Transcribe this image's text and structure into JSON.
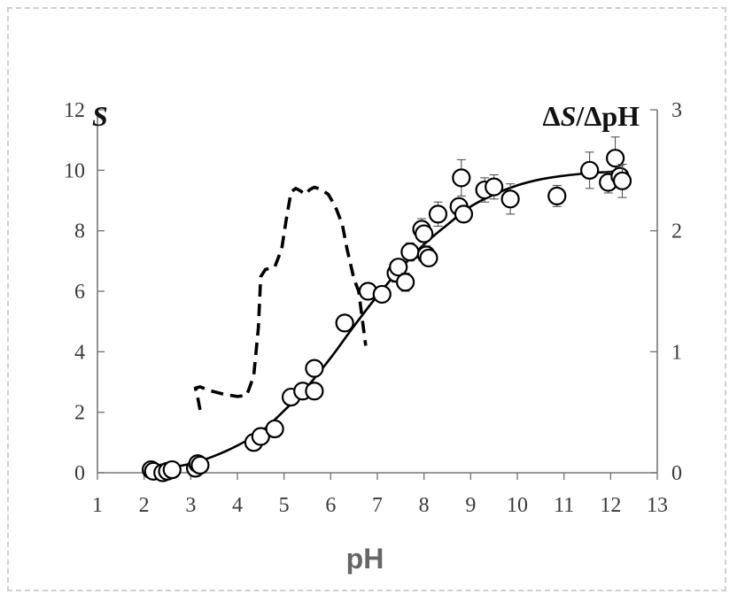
{
  "chart_data": {
    "type": "scatter",
    "xlabel": "pH",
    "ylabel_left": "S",
    "ylabel_right_parts": [
      "Δ",
      "S",
      "/ΔpH"
    ],
    "xlim": [
      1,
      13
    ],
    "ylim_left": [
      0,
      12
    ],
    "ylim_right": [
      0,
      3
    ],
    "x_ticks": [
      "1",
      "2",
      "3",
      "4",
      "5",
      "6",
      "7",
      "8",
      "9",
      "10",
      "11",
      "12",
      "13"
    ],
    "y_left_ticks": [
      "0",
      "2",
      "4",
      "6",
      "8",
      "10",
      "12"
    ],
    "y_right_ticks": [
      "0",
      "1",
      "2",
      "3"
    ],
    "grid": false,
    "series": [
      {
        "type": "scatter",
        "axis": "left",
        "marker": "open-circle",
        "points": [
          {
            "x": 2.15,
            "y": 0.1,
            "err": 0
          },
          {
            "x": 2.2,
            "y": 0.05,
            "err": 0
          },
          {
            "x": 2.4,
            "y": 0.0,
            "err": 0
          },
          {
            "x": 2.5,
            "y": 0.05,
            "err": 0
          },
          {
            "x": 2.6,
            "y": 0.1,
            "err": 0
          },
          {
            "x": 3.1,
            "y": 0.15,
            "err": 0
          },
          {
            "x": 3.15,
            "y": 0.3,
            "err": 0
          },
          {
            "x": 3.2,
            "y": 0.25,
            "err": 0
          },
          {
            "x": 4.35,
            "y": 1.0,
            "err": 0
          },
          {
            "x": 4.5,
            "y": 1.2,
            "err": 0
          },
          {
            "x": 4.8,
            "y": 1.45,
            "err": 0.1
          },
          {
            "x": 5.15,
            "y": 2.5,
            "err": 0.1
          },
          {
            "x": 5.4,
            "y": 2.7,
            "err": 0.1
          },
          {
            "x": 5.65,
            "y": 2.7,
            "err": 0
          },
          {
            "x": 5.65,
            "y": 3.45,
            "err": 0.15
          },
          {
            "x": 6.3,
            "y": 4.95,
            "err": 0.15
          },
          {
            "x": 6.8,
            "y": 6.0,
            "err": 0.2
          },
          {
            "x": 7.1,
            "y": 5.9,
            "err": 0
          },
          {
            "x": 7.4,
            "y": 6.6,
            "err": 0.3
          },
          {
            "x": 7.45,
            "y": 6.8,
            "err": 0
          },
          {
            "x": 7.6,
            "y": 6.3,
            "err": 0.3
          },
          {
            "x": 7.7,
            "y": 7.3,
            "err": 0.3
          },
          {
            "x": 7.95,
            "y": 8.05,
            "err": 0.35
          },
          {
            "x": 8.0,
            "y": 7.9,
            "err": 0
          },
          {
            "x": 8.05,
            "y": 7.2,
            "err": 0.3
          },
          {
            "x": 8.1,
            "y": 7.1,
            "err": 0
          },
          {
            "x": 8.3,
            "y": 8.55,
            "err": 0.4
          },
          {
            "x": 8.75,
            "y": 8.8,
            "err": 0
          },
          {
            "x": 8.8,
            "y": 9.75,
            "err": 0.6
          },
          {
            "x": 8.85,
            "y": 8.55,
            "err": 0
          },
          {
            "x": 9.3,
            "y": 9.35,
            "err": 0.4
          },
          {
            "x": 9.5,
            "y": 9.45,
            "err": 0.4
          },
          {
            "x": 9.85,
            "y": 9.05,
            "err": 0.5
          },
          {
            "x": 10.85,
            "y": 9.15,
            "err": 0.35
          },
          {
            "x": 11.55,
            "y": 10.0,
            "err": 0.6
          },
          {
            "x": 11.95,
            "y": 9.6,
            "err": 0.35
          },
          {
            "x": 12.1,
            "y": 10.4,
            "err": 0.7
          },
          {
            "x": 12.2,
            "y": 9.8,
            "err": 0.35
          },
          {
            "x": 12.25,
            "y": 9.65,
            "err": 0.55
          }
        ]
      },
      {
        "type": "line",
        "axis": "left",
        "style": "solid",
        "x": [
          2.0,
          2.5,
          3.0,
          3.5,
          4.0,
          4.5,
          5.0,
          5.5,
          6.0,
          6.5,
          7.0,
          7.5,
          8.0,
          8.5,
          9.0,
          9.5,
          10.0,
          10.5,
          11.0,
          11.5,
          12.0,
          12.3
        ],
        "y": [
          0.08,
          0.16,
          0.3,
          0.55,
          0.9,
          1.35,
          2.05,
          2.85,
          3.8,
          4.85,
          5.85,
          6.75,
          7.55,
          8.2,
          8.8,
          9.2,
          9.5,
          9.7,
          9.82,
          9.9,
          9.95,
          9.97
        ]
      },
      {
        "type": "line",
        "axis": "right",
        "style": "dashed",
        "x": [
          3.2,
          3.15,
          3.1,
          3.2,
          3.4,
          3.7,
          4.0,
          4.2,
          4.35,
          4.45,
          4.5,
          4.6,
          4.8,
          4.95,
          5.05,
          5.15,
          5.25,
          5.35,
          5.45,
          5.55,
          5.65,
          5.8,
          5.95,
          6.1,
          6.25,
          6.35,
          6.5,
          6.6,
          6.65,
          6.7,
          6.75
        ],
        "y": [
          0.52,
          0.62,
          0.7,
          0.71,
          0.68,
          0.65,
          0.63,
          0.64,
          0.8,
          1.2,
          1.62,
          1.68,
          1.7,
          1.85,
          2.1,
          2.32,
          2.35,
          2.33,
          2.3,
          2.34,
          2.36,
          2.34,
          2.3,
          2.2,
          2.05,
          1.85,
          1.6,
          1.5,
          1.35,
          1.2,
          1.05
        ]
      }
    ]
  }
}
